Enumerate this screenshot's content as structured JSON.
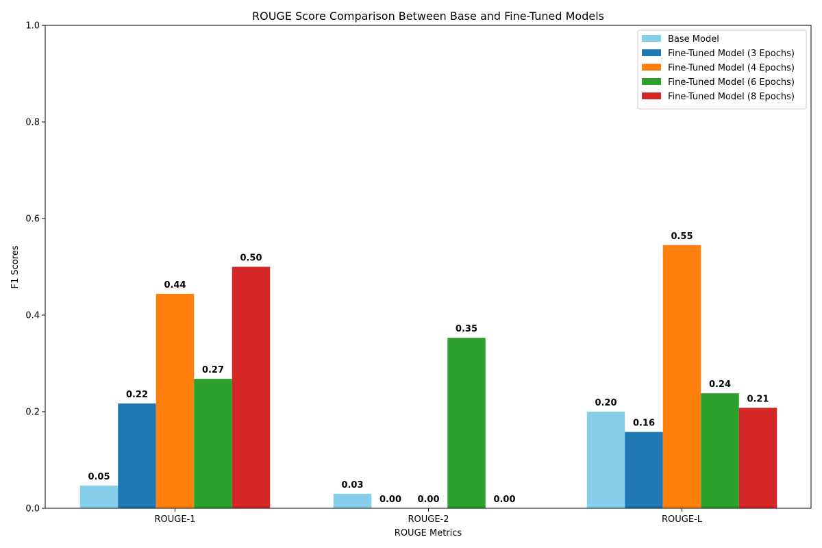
{
  "chart_data": {
    "type": "bar",
    "title": "ROUGE Score Comparison Between Base and Fine-Tuned Models",
    "xlabel": "ROUGE Metrics",
    "ylabel": "F1 Scores",
    "ylim": [
      0,
      1.0
    ],
    "yticks": [
      "0.0",
      "0.2",
      "0.4",
      "0.6",
      "0.8",
      "1.0"
    ],
    "categories": [
      "ROUGE-1",
      "ROUGE-2",
      "ROUGE-L"
    ],
    "legend_position": "top-right",
    "grid": false,
    "series": [
      {
        "name": "Base Model",
        "color": "#87ceeb",
        "values": [
          0.047,
          0.03,
          0.2
        ],
        "labels": [
          "0.05",
          "0.03",
          "0.20"
        ]
      },
      {
        "name": "Fine-Tuned Model (3 Epochs)",
        "color": "#1f77b4",
        "values": [
          0.217,
          0.0,
          0.158
        ],
        "labels": [
          "0.22",
          "0.00",
          "0.16"
        ]
      },
      {
        "name": "Fine-Tuned Model (4 Epochs)",
        "color": "#ff7f0e",
        "values": [
          0.444,
          0.0,
          0.545
        ],
        "labels": [
          "0.44",
          "0.00",
          "0.55"
        ]
      },
      {
        "name": "Fine-Tuned Model (6 Epochs)",
        "color": "#2ca02c",
        "values": [
          0.268,
          0.353,
          0.238
        ],
        "labels": [
          "0.27",
          "0.35",
          "0.24"
        ]
      },
      {
        "name": "Fine-Tuned Model (8 Epochs)",
        "color": "#d62728",
        "values": [
          0.5,
          0.0,
          0.208
        ],
        "labels": [
          "0.50",
          "0.00",
          "0.21"
        ]
      }
    ]
  }
}
